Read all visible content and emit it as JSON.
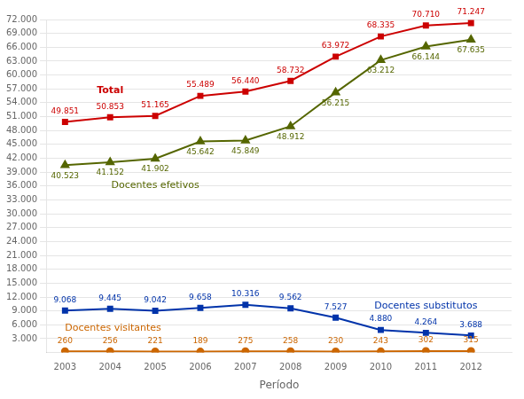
{
  "chart_data": {
    "type": "line",
    "xlabel": "Período",
    "x": [
      2003,
      2004,
      2005,
      2006,
      2007,
      2008,
      2009,
      2010,
      2011,
      2012
    ],
    "xlim": [
      2002.6,
      2012.9
    ],
    "xticks": [
      2003,
      2004,
      2005,
      2006,
      2007,
      2008,
      2009,
      2010,
      2011,
      2012
    ],
    "ylim": [
      0,
      72000
    ],
    "yticks": [
      {
        "value": 3000,
        "label": "3.000"
      },
      {
        "value": 6000,
        "label": "6.000"
      },
      {
        "value": 9000,
        "label": "9.000"
      },
      {
        "value": 12000,
        "label": "12.000"
      },
      {
        "value": 15000,
        "label": "15.000"
      },
      {
        "value": 18000,
        "label": "18.000"
      },
      {
        "value": 21000,
        "label": "21.000"
      },
      {
        "value": 24000,
        "label": "24.000"
      },
      {
        "value": 27000,
        "label": "27.000"
      },
      {
        "value": 30000,
        "label": "30.000"
      },
      {
        "value": 33000,
        "label": "33.000"
      },
      {
        "value": 36000,
        "label": "36.000"
      },
      {
        "value": 39000,
        "label": "39.000"
      },
      {
        "value": 42000,
        "label": "42.000"
      },
      {
        "value": 45000,
        "label": "45.000"
      },
      {
        "value": 48000,
        "label": "48.000"
      },
      {
        "value": 51000,
        "label": "51.000"
      },
      {
        "value": 54000,
        "label": "54.000"
      },
      {
        "value": 57000,
        "label": "57.000"
      },
      {
        "value": 60000,
        "label": "60.000"
      },
      {
        "value": 63000,
        "label": "63.000"
      },
      {
        "value": 66000,
        "label": "66.000"
      },
      {
        "value": 69000,
        "label": "69.000"
      },
      {
        "value": 72000,
        "label": "72.000"
      }
    ],
    "grid": "y",
    "data_labels": true,
    "series": [
      {
        "name": "Total",
        "color": "#cc0000",
        "marker": "square",
        "values": [
          49851,
          50853,
          51165,
          55489,
          56440,
          58732,
          63972,
          68335,
          70710,
          71247
        ],
        "value_labels": [
          "49.851",
          "50.853",
          "51.165",
          "55.489",
          "56.440",
          "58.732",
          "63.972",
          "68.335",
          "70.710",
          "71.247"
        ]
      },
      {
        "name": "Docentes efetivos",
        "color": "#556600",
        "marker": "triangle",
        "values": [
          40523,
          41152,
          41902,
          45642,
          45849,
          48912,
          56215,
          63212,
          66144,
          67635
        ],
        "value_labels": [
          "40.523",
          "41.152",
          "41.902",
          "45.642",
          "45.849",
          "48.912",
          "56.215",
          "63.212",
          "66.144",
          "67.635"
        ]
      },
      {
        "name": "Docentes substitutos",
        "color": "#0033aa",
        "marker": "square",
        "values": [
          9068,
          9445,
          9042,
          9658,
          10316,
          9562,
          7527,
          4880,
          4264,
          3688
        ],
        "value_labels": [
          "9.068",
          "9.445",
          "9.042",
          "9.658",
          "10.316",
          "9.562",
          "7.527",
          "4.880",
          "4.264",
          "3.688"
        ]
      },
      {
        "name": "Docentes visitantes",
        "color": "#cc6600",
        "marker": "circle",
        "values": [
          260,
          256,
          221,
          189,
          275,
          258,
          230,
          243,
          302,
          315
        ],
        "value_labels": [
          "260",
          "256",
          "221",
          "189",
          "275",
          "258",
          "230",
          "243",
          "302",
          "315"
        ]
      }
    ]
  }
}
